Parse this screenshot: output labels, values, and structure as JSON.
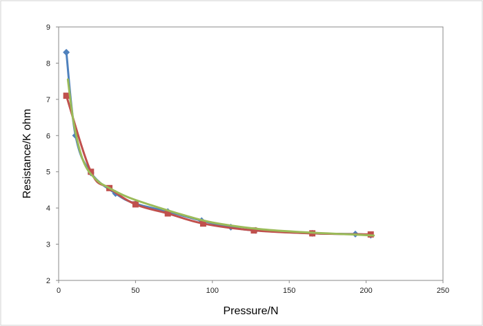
{
  "chart_data": {
    "type": "line",
    "title": "",
    "xlabel": "Pressure/N",
    "ylabel": "Resistance/K ohm",
    "xlim": [
      0,
      250
    ],
    "ylim": [
      2,
      9
    ],
    "xticks": [
      0,
      50,
      100,
      150,
      200,
      250
    ],
    "yticks": [
      2,
      3,
      4,
      5,
      6,
      7,
      8,
      9
    ],
    "grid": false,
    "legend": "none",
    "series": [
      {
        "color": "#4F81BD",
        "marker": "diamond",
        "x": [
          5,
          11,
          21,
          37,
          50,
          71,
          93,
          112,
          128,
          165,
          193,
          203
        ],
        "y": [
          8.3,
          6.0,
          4.97,
          4.4,
          4.12,
          3.9,
          3.65,
          3.47,
          3.38,
          3.3,
          3.28,
          3.25
        ]
      },
      {
        "color": "#C0504D",
        "marker": "square",
        "x": [
          5,
          21,
          33,
          50,
          71,
          94,
          127,
          165,
          203
        ],
        "y": [
          7.1,
          5.0,
          4.55,
          4.1,
          3.85,
          3.57,
          3.38,
          3.3,
          3.27
        ]
      },
      {
        "color": "#9BBB59",
        "marker": "none",
        "x": [
          6,
          10,
          16,
          24,
          33,
          45,
          60,
          80,
          100,
          130,
          160,
          190,
          205
        ],
        "y": [
          7.55,
          6.3,
          5.3,
          4.8,
          4.55,
          4.3,
          4.08,
          3.82,
          3.6,
          3.42,
          3.33,
          3.27,
          3.24
        ]
      }
    ]
  }
}
